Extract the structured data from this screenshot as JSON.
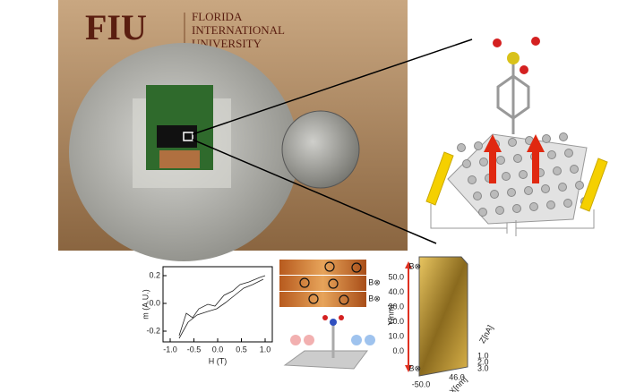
{
  "photo": {
    "logo": "FIU",
    "name_lines": [
      "FLORIDA",
      "INTERNATIONAL",
      "UNIVERSITY"
    ]
  },
  "hysteresis_plot": {
    "y_label": "m (A.U.)",
    "x_label": "H (T)",
    "y_ticks": [
      "0.2",
      "0.0",
      "-0.2"
    ],
    "x_ticks": [
      "-1.0",
      "-0.5",
      "0.0",
      "0.5",
      "1.0"
    ]
  },
  "stm_images": {
    "field_labels": [
      "B⊗",
      "B⊗"
    ]
  },
  "topography_plot": {
    "field_labels": [
      "B⊗",
      "B⊗"
    ],
    "y_label": "Y[nm]",
    "y_ticks": [
      "50.0",
      "40.0",
      "30.0",
      "20.0",
      "10.0",
      "0.0"
    ],
    "z_label": "Z[nA]",
    "z_ticks": [
      "1.0",
      "2.0",
      "3.0"
    ],
    "x_label": "X[nm]",
    "x_ticks": [
      "-50.0",
      "46.0"
    ]
  }
}
